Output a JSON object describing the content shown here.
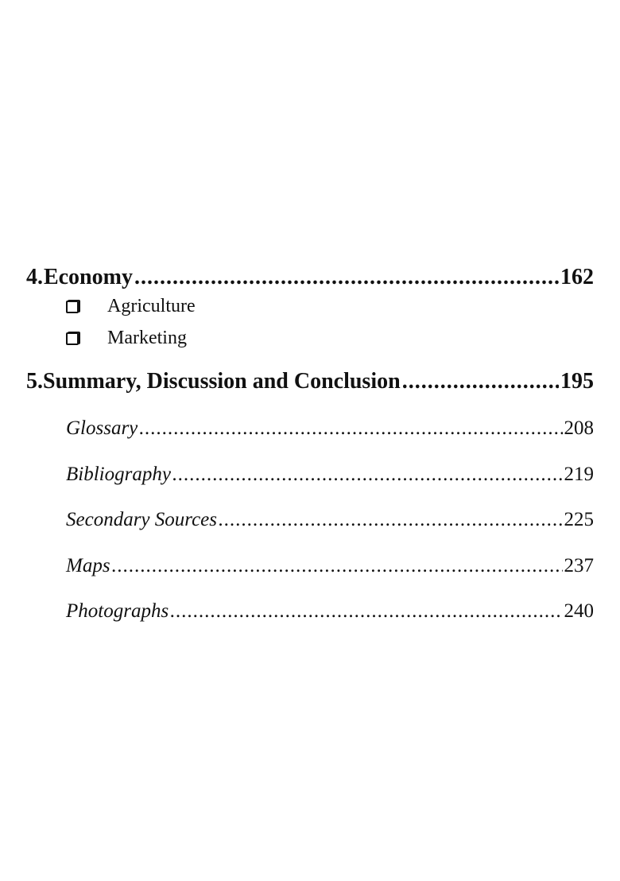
{
  "toc": {
    "chapters": [
      {
        "number": "4.",
        "title": "Economy",
        "page": "162",
        "subitems": [
          "Agriculture",
          "Marketing"
        ]
      },
      {
        "number": "5.",
        "title": "Summary, Discussion and Conclusion",
        "page": "195"
      }
    ],
    "back_matter": [
      {
        "title": "Glossary",
        "page": "208"
      },
      {
        "title": "Bibliography",
        "page": "219"
      },
      {
        "title": "Secondary Sources",
        "page": "225"
      },
      {
        "title": "Maps",
        "page": "237"
      },
      {
        "title": "Photographs",
        "page": "240"
      }
    ],
    "bullet_icon": "shadowed-square"
  }
}
